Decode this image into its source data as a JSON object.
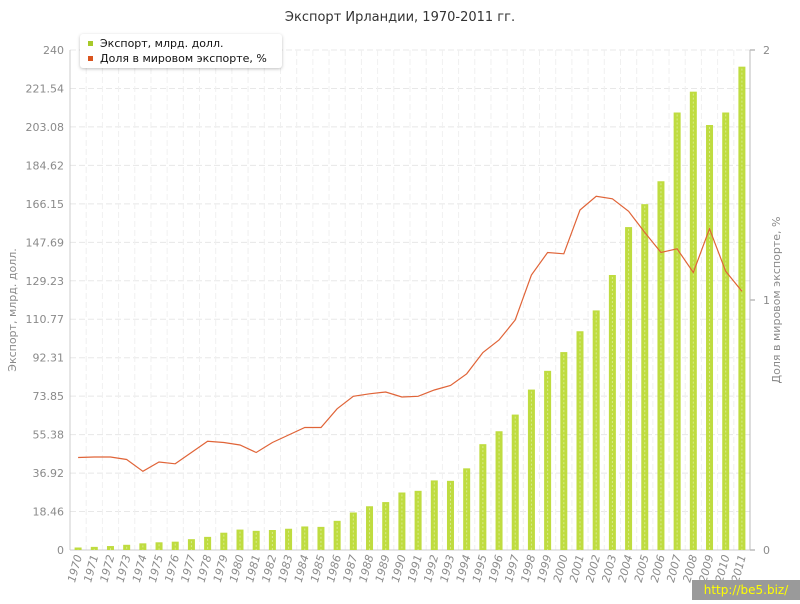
{
  "title": "Экспорт Ирландии, 1970-2011 гг.",
  "watermark": "http://be5.biz/",
  "colors": {
    "bar": "#bfdc40",
    "bar_inner": "#d9ec8c",
    "line": "#e06438",
    "legend_bar": "#a7c92a",
    "legend_line": "#d9541f",
    "grid": "#e8e8e8",
    "axis_text": "#8a8a8a"
  },
  "legend": {
    "items": [
      {
        "label": "Экспорт, млрд. долл.",
        "color": "#a7c92a"
      },
      {
        "label": "Доля в мировом экспорте, %",
        "color": "#d9541f"
      }
    ]
  },
  "chart_data": {
    "type": "bar",
    "title": "Экспорт Ирландии, 1970-2011 гг.",
    "xlabel": "",
    "ylabel": "Экспорт, млрд. долл.",
    "y2label": "Доля в мировом экспорте, %",
    "ylim": [
      0,
      240
    ],
    "y2lim": [
      0,
      2
    ],
    "y_ticks": [
      "0",
      "18.46",
      "36.92",
      "55.38",
      "73.85",
      "92.31",
      "110.77",
      "129.23",
      "147.69",
      "166.15",
      "184.62",
      "203.08",
      "221.54",
      "240"
    ],
    "y2_ticks": [
      "0",
      "1",
      "2"
    ],
    "grid": true,
    "legend_position": "top-left",
    "categories": [
      "1970",
      "1971",
      "1972",
      "1973",
      "1974",
      "1975",
      "1976",
      "1977",
      "1978",
      "1979",
      "1980",
      "1981",
      "1982",
      "1983",
      "1984",
      "1985",
      "1986",
      "1987",
      "1988",
      "1989",
      "1990",
      "1991",
      "1992",
      "1993",
      "1994",
      "1995",
      "1996",
      "1997",
      "1998",
      "1999",
      "2000",
      "2001",
      "2002",
      "2003",
      "2004",
      "2005",
      "2006",
      "2007",
      "2008",
      "2009",
      "2010",
      "2011"
    ],
    "series": [
      {
        "name": "Экспорт, млрд. долл.",
        "type": "bar",
        "axis": "left",
        "values": [
          1.2,
          1.5,
          1.9,
          2.5,
          3.2,
          3.7,
          4.0,
          5.2,
          6.3,
          8.3,
          9.8,
          9.2,
          9.6,
          10.2,
          11.3,
          11.1,
          14.0,
          18.0,
          21.0,
          23.0,
          27.6,
          28.4,
          33.4,
          33.2,
          39.2,
          50.8,
          57.0,
          65.0,
          77.0,
          86.0,
          95.0,
          105.0,
          115.0,
          132.0,
          155.0,
          166.0,
          177.0,
          210.0,
          220.0,
          204.0,
          210.0,
          232.0
        ]
      },
      {
        "name": "Доля в мировом экспорте, %",
        "type": "line",
        "axis": "right",
        "values": [
          0.37,
          0.372,
          0.372,
          0.362,
          0.315,
          0.352,
          0.345,
          0.39,
          0.435,
          0.43,
          0.42,
          0.39,
          0.43,
          0.46,
          0.49,
          0.49,
          0.565,
          0.615,
          0.625,
          0.632,
          0.612,
          0.615,
          0.64,
          0.658,
          0.705,
          0.79,
          0.84,
          0.92,
          1.1,
          1.19,
          1.185,
          1.36,
          1.415,
          1.405,
          1.355,
          1.27,
          1.19,
          1.205,
          1.11,
          1.285,
          1.115,
          1.035
        ]
      }
    ]
  }
}
